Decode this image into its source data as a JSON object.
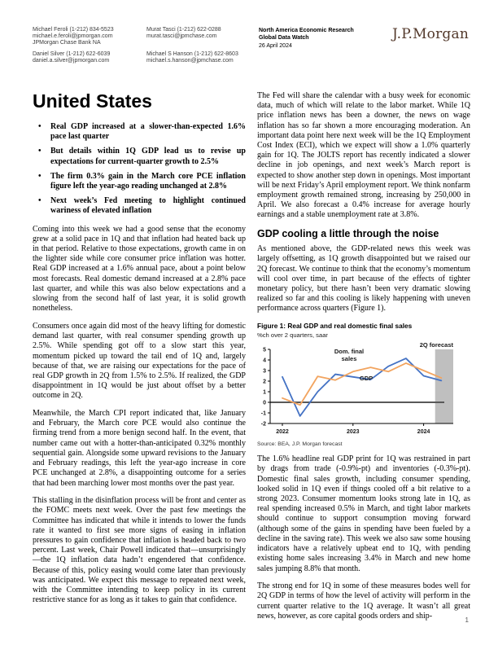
{
  "header": {
    "contacts": [
      {
        "name_phone": "Michael Feroli  (1-212) 834-5523",
        "email": "michael.e.feroli@jpmorgan.com",
        "org": "JPMorgan Chase Bank NA"
      },
      {
        "name_phone": "Daniel Silver  (1-212) 622-6039",
        "email": "daniel.a.silver@jpmorgan.com"
      },
      {
        "name_phone": "Murat Tasci  (1-212) 622-0288",
        "email": "murat.tasci@jpmchase.com"
      },
      {
        "name_phone": "Michael S Hanson  (1-212) 622-8603",
        "email": "michael.s.hanson@jpmchase.com"
      }
    ],
    "research_title": "North America Economic Research",
    "publication": "Global Data Watch",
    "date": "26 April 2024",
    "logo_text": "J.P.Morgan"
  },
  "page_title": "United States",
  "bullets": [
    "Real GDP increased at a slower-than-expected 1.6% pace last quarter",
    "But details within 1Q GDP lead us to revise up expectations for current-quarter growth to 2.5%",
    "The firm 0.3% gain in the March core PCE inflation figure left the year-ago reading unchanged at 2.8%",
    "Next week’s Fed meeting to highlight continued wariness of elevated inflation"
  ],
  "left_column": {
    "paragraphs": [
      "Coming into this week we had a good sense that the economy grew at a solid pace in 1Q and that inflation had heated back up in that period. Relative to those expectations, growth came in on the lighter side while core consumer price inflation was hotter. Real GDP increased at a 1.6% annual pace, about a point below most forecasts. Real domestic demand increased at a 2.8% pace last quarter, and while this was also below expectations and a slowing from the second half of last year, it is solid growth nonetheless.",
      "Consumers once again did most of the heavy lifting for domestic demand last quarter, with real consumer spending growth up 2.5%. While spending got off to a slow start this year, momentum picked up toward the tail end of 1Q and, largely because of that, we are raising our expectations for the pace of real GDP growth in 2Q from 1.5% to 2.5%. If realized, the GDP disappointment in 1Q would be just about offset by a better outcome in 2Q.",
      "Meanwhile, the March CPI report indicated that, like January and February, the March core PCE would also continue the firming trend from a more benign second half. In the event, that number came out with a hotter-than-anticipated 0.32% monthly sequential gain. Alongside some upward revisions to the January and February readings, this left the year-ago increase in core PCE unchanged at 2.8%, a disappointing outcome for a series that had been marching lower most months over the past year.",
      "This stalling in the disinflation process will be front and center as the FOMC meets next week. Over the past few meetings the Committee has indicated that while it intends to lower the funds rate it wanted to first see more signs of easing in inflation pressures to gain confidence that inflation is headed back to two percent. Last week, Chair Powell indicated that—unsurprisingly—the 1Q inflation data hadn’t engendered that confidence. Because of this, policy easing would come later than previously was anticipated. We expect this message to repeated next week, with the Committee intending to keep policy in its current restrictive stance for as long as it takes to gain that confidence."
    ]
  },
  "right_column": {
    "intro_paragraph": "The Fed will share the calendar with a busy week for economic data, much of which will relate to the labor market. While 1Q price inflation news has been a downer, the news on wage inflation has so far shown a more encouraging moderation. An important data point here next week will be the 1Q Employment Cost Index (ECI), which we expect will show a 1.0% quarterly gain for 1Q. The JOLTS report has recently indicated a slower decline in job openings, and next week’s March report is expected to show another step down in openings. Most important will be next Friday’s April employment report. We think nonfarm employment growth remained strong, increasing by 250,000 in April. We also forecast a 0.4% increase for average hourly earnings and a stable unemployment rate at 3.8%.",
    "section_heading": "GDP cooling a little through the noise",
    "section_paragraph": "As mentioned above, the GDP-related news this week was largely offsetting, as 1Q growth disappointed but we raised our 2Q forecast. We continue to think that the economy’s momentum will cool over time, in part because of the effects of tighter monetary policy, but there hasn’t been very dramatic slowing realized so far and this cooling is likely happening with uneven performance across quarters (Figure 1).",
    "after_figure_paragraphs": [
      "The 1.6% headline real GDP print for 1Q was restrained in part by drags from trade (-0.9%-pt) and inventories (-0.3%-pt). Domestic final sales growth, including consumer spending, looked solid in 1Q even if things cooled off a bit relative to a strong 2023. Consumer momentum looks strong late in 1Q, as real spending increased 0.5% in March, and tight labor markets should continue to support consumption moving forward (although some of the gains in spending have been fueled by a decline in the saving rate). This week we also saw some housing indicators have a relatively upbeat end to 1Q, with pending existing home sales increasing 3.4% in March and new home sales jumping 8.8% that month.",
      "The strong end for 1Q in some of these measures bodes well for 2Q GDP in terms of how the level of activity will perform in the current quarter relative to the 1Q average. It wasn’t all great news, however, as core capital goods orders and ship-"
    ]
  },
  "figure": {
    "title": "Figure 1: Real GDP and real domestic final sales",
    "subtitle": "%ch over 2 quarters, saar",
    "source": "Source: BEA, J.P. Morgan forecast"
  },
  "chart_data": {
    "type": "line",
    "title": "Figure 1: Real GDP and real domestic final sales",
    "ylabel": "%ch over 2 quarters, saar",
    "x": [
      "2022Q1",
      "2022Q2",
      "2022Q3",
      "2022Q4",
      "2023Q1",
      "2023Q2",
      "2023Q3",
      "2023Q4",
      "2024Q1",
      "2024Q2"
    ],
    "series": [
      {
        "name": "GDP",
        "color": "#4472C4",
        "values": [
          2.4,
          -1.3,
          1.0,
          2.65,
          2.4,
          2.15,
          3.4,
          4.15,
          2.5,
          2.05
        ]
      },
      {
        "name": "Dom. final sales",
        "color": "#F2A45F",
        "values": [
          0.4,
          -0.25,
          2.45,
          2.1,
          2.9,
          3.3,
          2.9,
          3.7,
          3.0,
          2.3
        ]
      }
    ],
    "ylim": [
      -2,
      5
    ],
    "yticks": [
      5,
      4,
      3,
      2,
      1,
      0,
      -1,
      -2
    ],
    "xticks": [
      {
        "label": "2022",
        "index": 0
      },
      {
        "label": "2023",
        "index": 4
      },
      {
        "label": "2024",
        "index": 8
      }
    ],
    "forecast_band": {
      "label": "2Q forecast",
      "start_index": 8.65,
      "color": "#BFBFBF"
    },
    "zero_line_color": "#595959",
    "grid": false,
    "legend_position": "inline-labels",
    "labels": {
      "dom_line1": "Dom. final",
      "dom_line2": "sales",
      "gdp": "GDP",
      "forecast": "2Q forecast"
    },
    "source": "Source: BEA, J.P. Morgan forecast"
  },
  "page_number": "1",
  "colors": {
    "logo_brown": "#53392B",
    "gdp_line": "#4472C4",
    "dom_sales_line": "#F2A45F",
    "forecast_band": "#BFBFBF",
    "zero_line": "#595959"
  }
}
